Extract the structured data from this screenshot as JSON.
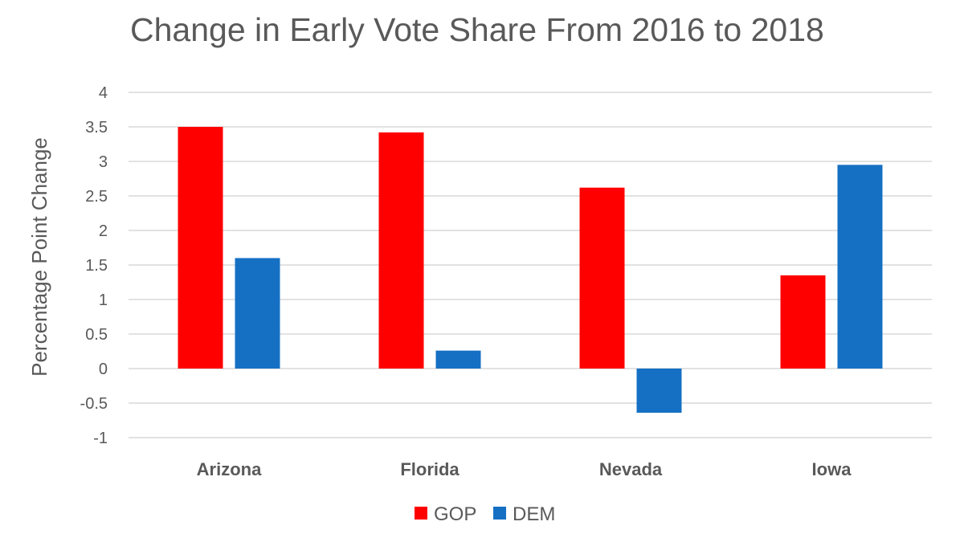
{
  "chart_data": {
    "type": "bar",
    "title": "Change in Early Vote Share From 2016 to 2018",
    "xlabel": "",
    "ylabel": "Percentage Point Change",
    "categories": [
      "Arizona",
      "Florida",
      "Nevada",
      "Iowa"
    ],
    "series": [
      {
        "name": "GOP",
        "color": "#ff0000",
        "values": [
          3.5,
          3.42,
          2.62,
          1.35
        ]
      },
      {
        "name": "DEM",
        "color": "#1570c4",
        "values": [
          1.6,
          0.26,
          -0.64,
          2.95
        ]
      }
    ],
    "ylim": [
      -1,
      4
    ],
    "yticks": [
      "4",
      "3.5",
      "3",
      "2.5",
      "2",
      "1.5",
      "1",
      "0.5",
      "0",
      "-0.5",
      "-1"
    ],
    "grid": true,
    "legend_position": "bottom"
  }
}
